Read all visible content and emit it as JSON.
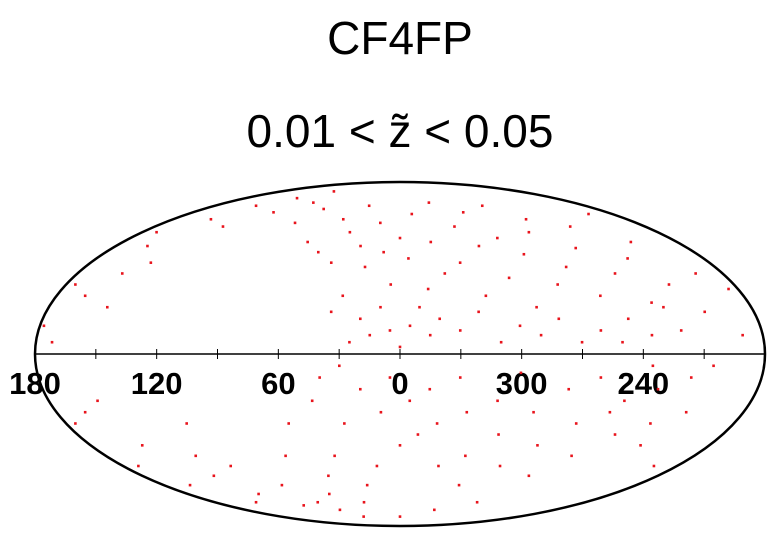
{
  "chart_data": {
    "type": "scatter",
    "title": "CF4FP",
    "subtitle": "0.01 < z̃ < 0.05",
    "projection": "mollweide",
    "color": "#e8141c",
    "xticks": [
      180,
      120,
      60,
      0,
      300,
      240
    ],
    "minor_xticks": [
      150,
      90,
      30,
      330,
      270,
      210
    ],
    "x": [
      170,
      160,
      150,
      140,
      130,
      120,
      110,
      100,
      90,
      80,
      70,
      60,
      50,
      45,
      40,
      35,
      30,
      25,
      20,
      15,
      10,
      5,
      0,
      355,
      350,
      345,
      340,
      335,
      330,
      325,
      320,
      315,
      310,
      305,
      300,
      295,
      290,
      285,
      280,
      275,
      270,
      265,
      260,
      255,
      250,
      245,
      240,
      235,
      230,
      225,
      220,
      215,
      210,
      205,
      200,
      195,
      190,
      185,
      175,
      165,
      155,
      145,
      178,
      172,
      150,
      20,
      25,
      15,
      10,
      30,
      35,
      5,
      0,
      355,
      350,
      345,
      340,
      330,
      320,
      310,
      300,
      290,
      280,
      270,
      260,
      250,
      235,
      225,
      5,
      355,
      350,
      0,
      10,
      15,
      20,
      25,
      30,
      35,
      40,
      45,
      50,
      55,
      60,
      70,
      80,
      90,
      100,
      110,
      120,
      130,
      140,
      150,
      160,
      170,
      175,
      165,
      155,
      115,
      125,
      345,
      340,
      335,
      330,
      325,
      320,
      315,
      310,
      305,
      300,
      295,
      290,
      285,
      280,
      275,
      270,
      265,
      260,
      255,
      250,
      245,
      240,
      235,
      230,
      225,
      220,
      215,
      210,
      205,
      195,
      320,
      0,
      30,
      40,
      60,
      70
    ],
    "values": [
      55,
      48,
      62,
      70,
      58,
      75,
      66,
      80,
      72,
      60,
      68,
      50,
      45,
      62,
      40,
      55,
      70,
      48,
      38,
      60,
      45,
      30,
      52,
      42,
      65,
      28,
      50,
      35,
      72,
      40,
      58,
      25,
      48,
      66,
      33,
      52,
      20,
      44,
      70,
      30,
      55,
      38,
      62,
      25,
      47,
      15,
      35,
      58,
      22,
      42,
      10,
      30,
      50,
      18,
      65,
      35,
      8,
      28,
      30,
      25,
      35,
      40,
      12,
      5,
      20,
      15,
      5,
      8,
      20,
      25,
      18,
      10,
      3,
      12,
      20,
      8,
      15,
      10,
      18,
      5,
      12,
      8,
      15,
      5,
      10,
      5,
      8,
      20,
      -10,
      -20,
      -35,
      -40,
      -25,
      -50,
      -15,
      -60,
      -30,
      -70,
      -45,
      -20,
      -55,
      -80,
      -65,
      -75,
      -70,
      -60,
      -72,
      -50,
      -65,
      -55,
      -70,
      -40,
      -60,
      -50,
      -30,
      -25,
      -20,
      -30,
      -45,
      -15,
      -30,
      -50,
      -10,
      -25,
      -45,
      -60,
      -20,
      -35,
      -8,
      -50,
      -25,
      -70,
      -40,
      -15,
      -55,
      -30,
      -10,
      -45,
      -25,
      -20,
      -35,
      -5,
      -15,
      -30,
      -40,
      -10,
      -25,
      -5,
      -50,
      -75,
      -80,
      -5,
      -10,
      -30,
      -45
    ]
  }
}
